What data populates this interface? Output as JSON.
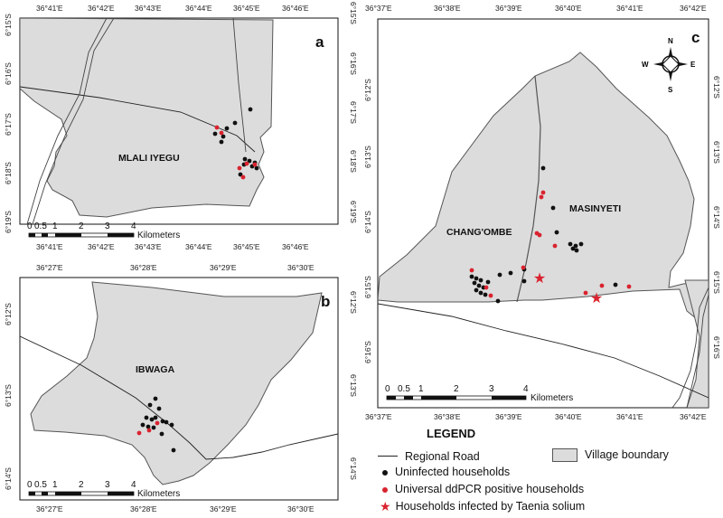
{
  "panels": {
    "a": {
      "letter": "a",
      "village": "MLALI IYEGU",
      "top_ticks": [
        "36°41'E",
        "36°42'E",
        "36°43'E",
        "36°44'E",
        "36°45'E",
        "36°46'E"
      ],
      "bottom_ticks": [
        "36°41'E",
        "36°42'E",
        "36°43'E",
        "36°44'E",
        "36°45'E",
        "36°46'E"
      ],
      "left_ticks": [
        "6°15'S",
        "6°16'S",
        "6°17'S",
        "6°18'S",
        "6°19'S"
      ],
      "right_ticks": [
        "6°15'S",
        "6°16'S",
        "6°17'S",
        "6°18'S",
        "6°19'S"
      ]
    },
    "b": {
      "letter": "b",
      "village": "IBWAGA",
      "top_ticks": [
        "36°27'E",
        "36°28'E",
        "36°29'E",
        "36°30'E"
      ],
      "bottom_ticks": [
        "36°27'E",
        "36°28'E",
        "36°29'E",
        "36°30'E"
      ],
      "left_ticks": [
        "6°12'S",
        "6°13'S",
        "6°14'S"
      ],
      "right_ticks": [
        "6°12'S",
        "6°13'S",
        "6°14'S"
      ]
    },
    "c": {
      "letter": "c",
      "village_left": "CHANG'OMBE",
      "village_right": "MASINYETI",
      "top_ticks": [
        "36°37'E",
        "36°38'E",
        "36°39'E",
        "36°40'E",
        "36°41'E",
        "36°42'E"
      ],
      "bottom_ticks": [
        "36°37'E",
        "36°38'E",
        "36°39'E",
        "36°40'E",
        "36°41'E",
        "36°42'E"
      ],
      "left_ticks": [
        "6°12'S",
        "6°13'S",
        "6°14'S",
        "6°15'S",
        "6°16'S"
      ],
      "right_ticks": [
        "6°12'S",
        "6°13'S",
        "6°14'S",
        "6°15'S",
        "6°16'S"
      ]
    }
  },
  "scale_bar": {
    "labels": [
      "0",
      "0.5",
      "1",
      "2",
      "3",
      "4"
    ],
    "unit": "Kilometers"
  },
  "compass": {
    "n": "N",
    "s": "S",
    "e": "E",
    "w": "W"
  },
  "legend": {
    "title": "LEGEND",
    "regional_road": "Regional Road",
    "village_boundary": "Village boundary",
    "uninfected": "Uninfected households",
    "ddpcr_positive": "Universal ddPCR positive households",
    "taenia": "Households infected by Taenia solium"
  },
  "colors": {
    "fill": "#dcdcdc",
    "uninfected": "#111111",
    "positive": "#d9232f",
    "boundary": "#555555"
  }
}
